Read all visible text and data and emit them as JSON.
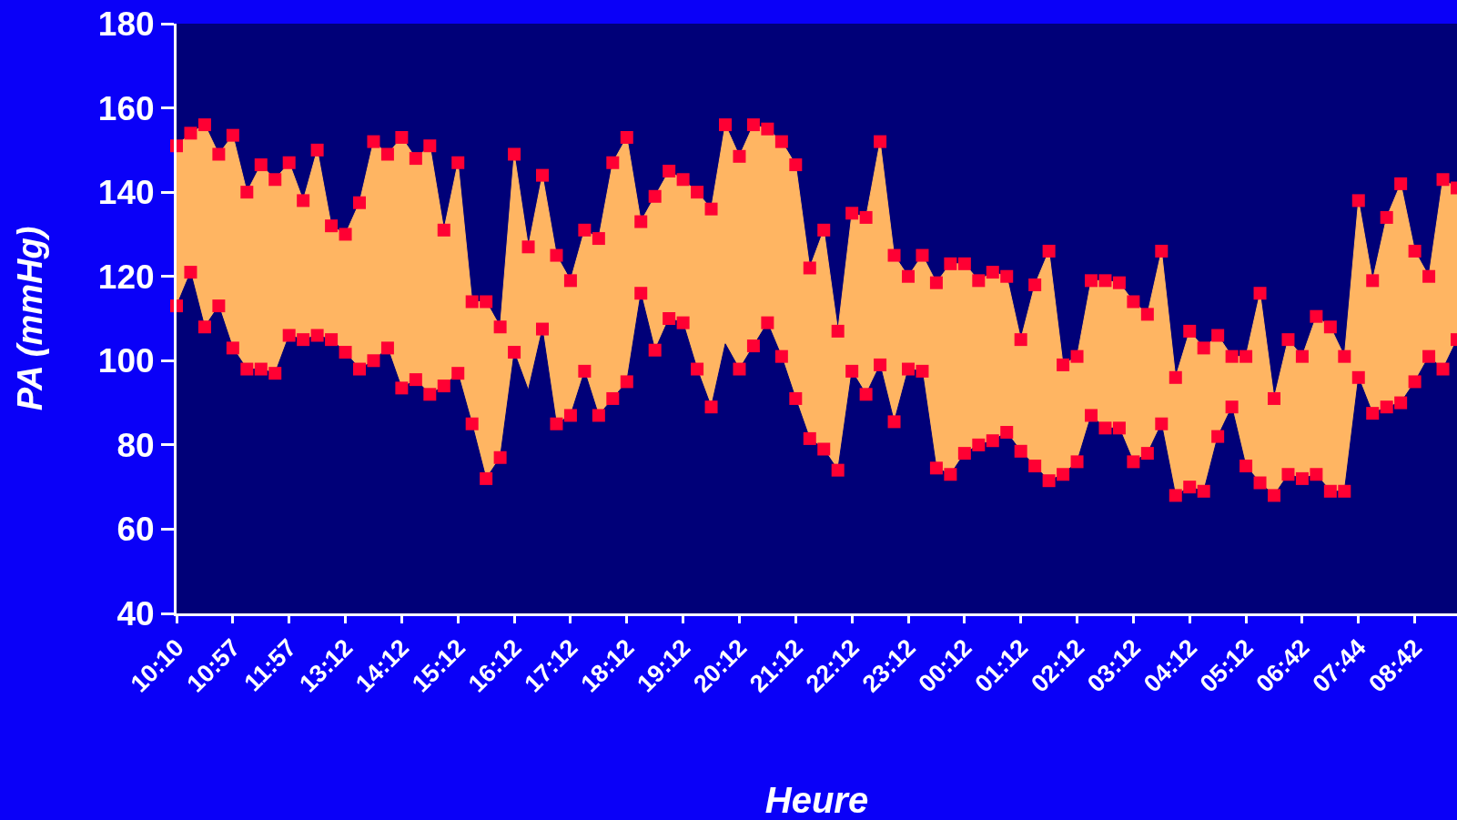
{
  "chart_data": {
    "type": "area",
    "xlabel": "Heure",
    "ylabel": "PA (mmHg)",
    "categories": [
      "10:10",
      null,
      null,
      null,
      "10:57",
      null,
      null,
      null,
      "11:57",
      null,
      null,
      null,
      "13:12",
      null,
      null,
      null,
      "14:12",
      null,
      null,
      null,
      "15:12",
      null,
      null,
      null,
      "16:12",
      null,
      null,
      null,
      "17:12",
      null,
      null,
      null,
      "18:12",
      null,
      null,
      null,
      "19:12",
      null,
      null,
      null,
      "20:12",
      null,
      null,
      null,
      "21:12",
      null,
      null,
      null,
      "22:12",
      null,
      null,
      null,
      "23:12",
      null,
      null,
      null,
      "00:12",
      null,
      null,
      null,
      "01:12",
      null,
      null,
      null,
      "02:12",
      null,
      null,
      null,
      "03:12",
      null,
      null,
      null,
      "04:12",
      null,
      null,
      null,
      "05:12",
      null,
      null,
      null,
      "06:42",
      null,
      null,
      null,
      "07:44",
      null,
      null,
      null,
      "08:42",
      null,
      null,
      null
    ],
    "series": [
      {
        "color": "#ffb562",
        "values": [
          151,
          154,
          156,
          149,
          153.5,
          140,
          146.5,
          143,
          147,
          138,
          150,
          132,
          130,
          137.5,
          152,
          149,
          153,
          148,
          151,
          131,
          147,
          114,
          114,
          108,
          149,
          127,
          144,
          125,
          119,
          131,
          129,
          147,
          153,
          133,
          139,
          145,
          143,
          140,
          136,
          156,
          148.5,
          156,
          155,
          152,
          146.5,
          122,
          131,
          107,
          135,
          134,
          152,
          125,
          120,
          125,
          118.5,
          123,
          123,
          119,
          121,
          120,
          105,
          118,
          126,
          99,
          101,
          119,
          119,
          118.5,
          114,
          111,
          126,
          96,
          107,
          103,
          106,
          101,
          101,
          116,
          91,
          105,
          101,
          110.5,
          108,
          101,
          138,
          119,
          134,
          142,
          126,
          120,
          143,
          141
        ]
      },
      {
        "color": "#000078",
        "values": [
          113,
          121,
          108,
          113,
          103,
          98,
          98,
          97,
          106,
          105,
          106,
          105,
          102,
          98,
          100,
          103,
          93.5,
          95.5,
          92,
          94,
          97,
          85,
          72,
          77,
          102,
          93,
          107.5,
          85,
          87,
          97.5,
          87,
          91,
          95,
          116,
          102.5,
          110,
          109,
          98,
          89,
          104,
          98,
          103.5,
          109,
          101,
          91,
          81.5,
          79,
          74,
          97.5,
          92,
          99,
          85.5,
          98,
          97.5,
          74.5,
          73,
          78,
          80,
          81,
          83,
          78.5,
          75,
          71.5,
          73,
          76,
          87,
          84,
          84,
          76,
          78,
          85,
          68,
          70,
          69,
          82,
          89,
          75,
          71,
          68,
          73,
          72,
          73,
          69,
          69,
          96,
          87.5,
          89,
          90,
          95,
          101,
          98,
          105
        ]
      },
      {
        "type": "scatter",
        "marker": "square",
        "color": "#ff0033",
        "values": [
          151,
          154,
          156,
          149,
          153.5,
          140,
          146.5,
          143,
          147,
          138,
          150,
          132,
          130,
          137.5,
          152,
          149,
          153,
          148,
          151,
          131,
          147,
          114,
          114,
          108,
          149,
          127,
          144,
          125,
          119,
          131,
          129,
          147,
          153,
          133,
          139,
          145,
          143,
          140,
          136,
          156,
          148.5,
          156,
          155,
          152,
          146.5,
          122,
          131,
          107,
          135,
          134,
          152,
          125,
          120,
          125,
          118.5,
          123,
          123,
          119,
          121,
          120,
          105,
          118,
          126,
          99,
          101,
          119,
          119,
          118.5,
          114,
          111,
          126,
          96,
          107,
          103,
          106,
          101,
          101,
          116,
          91,
          105,
          101,
          110.5,
          108,
          101,
          138,
          119,
          134,
          142,
          126,
          120,
          143,
          141
        ]
      },
      {
        "type": "scatter",
        "marker": "square",
        "color": "#ff0033",
        "values": [
          113,
          121,
          108,
          113,
          103,
          98,
          98,
          97,
          106,
          105,
          106,
          105,
          102,
          98,
          100,
          103,
          93.5,
          95.5,
          92,
          94,
          97,
          85,
          72,
          77,
          102,
          null,
          107.5,
          85,
          87,
          97.5,
          87,
          91,
          95,
          116,
          102.5,
          110,
          109,
          98,
          89,
          null,
          98,
          103.5,
          109,
          101,
          91,
          81.5,
          79,
          74,
          97.5,
          92,
          99,
          85.5,
          98,
          97.5,
          74.5,
          73,
          78,
          80,
          81,
          83,
          78.5,
          75,
          71.5,
          73,
          76,
          87,
          84,
          84,
          76,
          78,
          85,
          68,
          70,
          69,
          82,
          89,
          75,
          71,
          68,
          73,
          72,
          73,
          69,
          69,
          96,
          87.5,
          89,
          90,
          95,
          101,
          98,
          105
        ]
      }
    ],
    "ylim": [
      40,
      180
    ],
    "yticks": [
      40,
      60,
      80,
      100,
      120,
      140,
      160,
      180
    ],
    "grid": false,
    "legend": false
  }
}
